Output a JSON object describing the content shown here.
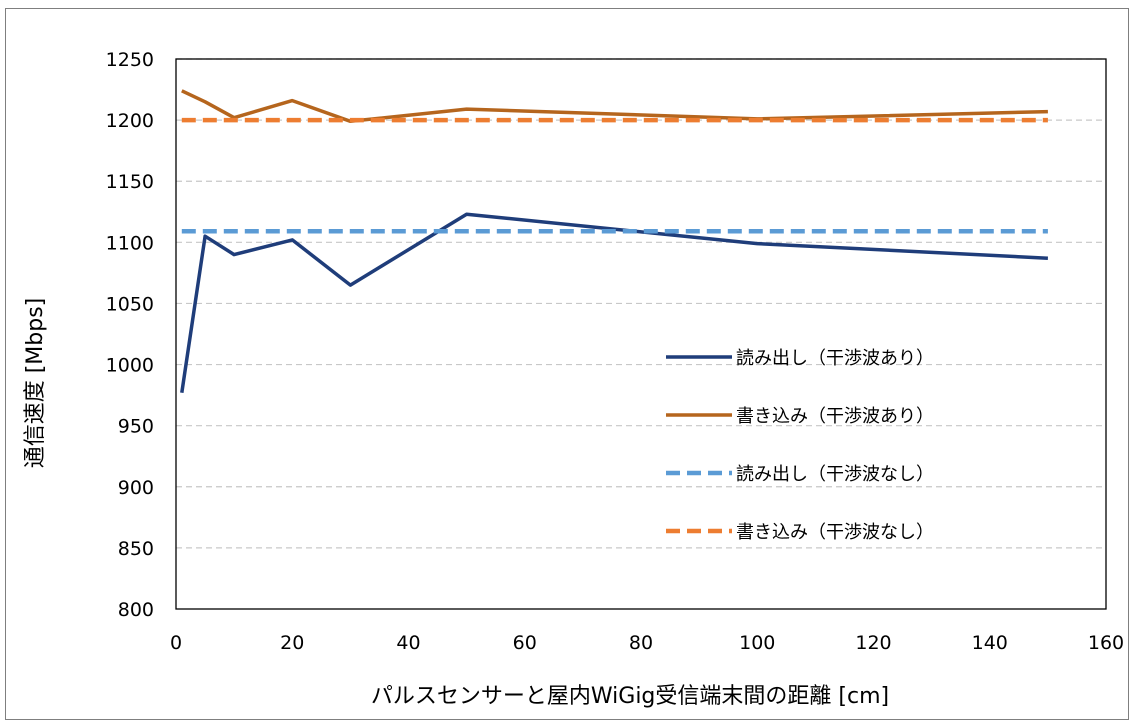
{
  "chart_data": {
    "type": "line",
    "title": "",
    "xlabel": "パルスセンサーと屋内WiGig受信端末間の距離 [cm]",
    "ylabel": "通信速度 [Mbps]",
    "xlim": [
      0,
      160
    ],
    "ylim": [
      800,
      1250
    ],
    "xticks": [
      0,
      20,
      40,
      60,
      80,
      100,
      120,
      140,
      160
    ],
    "yticks": [
      800,
      850,
      900,
      950,
      1000,
      1050,
      1100,
      1150,
      1200,
      1250
    ],
    "grid": "horizontal-dashed",
    "legend_position": "center-right",
    "series": [
      {
        "name": "読み出し（干渉波あり）",
        "color": "#1f3d7a",
        "style": "solid",
        "x": [
          1,
          5,
          10,
          20,
          30,
          50,
          100,
          150
        ],
        "y": [
          977,
          1105,
          1090,
          1102,
          1065,
          1123,
          1099,
          1087
        ]
      },
      {
        "name": "書き込み（干渉波あり）",
        "color": "#b5651d",
        "style": "solid",
        "x": [
          1,
          5,
          10,
          20,
          30,
          50,
          100,
          150
        ],
        "y": [
          1224,
          1215,
          1202,
          1216,
          1199,
          1209,
          1201,
          1207
        ]
      },
      {
        "name": "読み出し（干渉波なし）",
        "color": "#5b9bd5",
        "style": "dashed",
        "x": [
          1,
          150
        ],
        "y": [
          1109,
          1109
        ]
      },
      {
        "name": "書き込み（干渉波なし）",
        "color": "#ed7d31",
        "style": "dashed",
        "x": [
          1,
          150
        ],
        "y": [
          1200,
          1200
        ]
      }
    ]
  }
}
